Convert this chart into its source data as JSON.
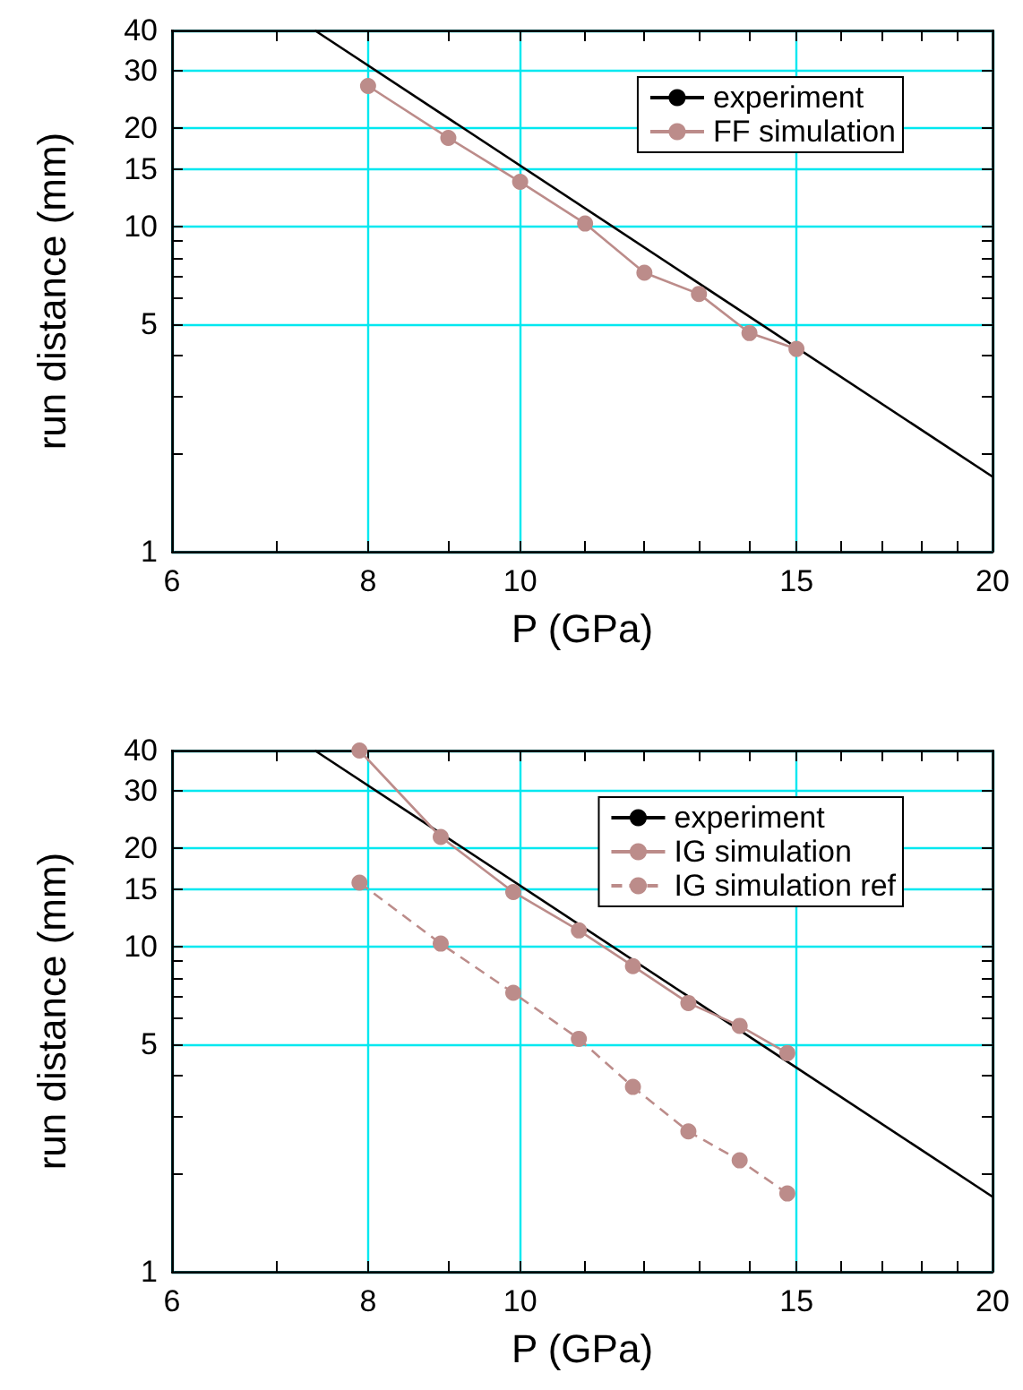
{
  "chart_data": [
    {
      "type": "line",
      "xlabel": "P (GPa)",
      "ylabel": "run distance (mm)",
      "log": "xy",
      "xlim": [
        6,
        20
      ],
      "ylim": [
        1,
        40
      ],
      "xticks": [
        6,
        {
          "value": 7,
          "label": null
        },
        8,
        {
          "value": 9,
          "label": null
        },
        10,
        {
          "value": 11,
          "label": null
        },
        {
          "value": 12,
          "label": null
        },
        {
          "value": 13,
          "label": null
        },
        {
          "value": 14,
          "label": null
        },
        15,
        {
          "value": 16,
          "label": null
        },
        {
          "value": 17,
          "label": null
        },
        {
          "value": 18,
          "label": null
        },
        {
          "value": 19,
          "label": null
        },
        20
      ],
      "yticks": [
        1,
        {
          "value": 2,
          "label": null
        },
        {
          "value": 3,
          "label": null
        },
        {
          "value": 4,
          "label": null
        },
        5,
        {
          "value": 6,
          "label": null
        },
        {
          "value": 7,
          "label": null
        },
        {
          "value": 8,
          "label": null
        },
        {
          "value": 9,
          "label": null
        },
        10,
        15,
        20,
        30,
        40
      ],
      "grid": true,
      "legend": "top right",
      "marker": "circle",
      "series": [
        {
          "name": "experiment",
          "color": "#000000",
          "marker": "none",
          "x": [
            7.4,
            20
          ],
          "values": [
            40,
            1.7
          ]
        },
        {
          "name": "FF simulation",
          "color": "#bc8c8a",
          "x": [
            8,
            9,
            10,
            11,
            12,
            13,
            14,
            15
          ],
          "values": [
            27,
            18.7,
            13.7,
            10.2,
            7.2,
            6.2,
            4.7,
            4.2
          ]
        }
      ]
    },
    {
      "type": "line",
      "xlabel": "P (GPa)",
      "ylabel": "run distance (mm)",
      "log": "xy",
      "xlim": [
        6,
        20
      ],
      "ylim": [
        1,
        40
      ],
      "xticks": [
        6,
        {
          "value": 7,
          "label": null
        },
        8,
        {
          "value": 9,
          "label": null
        },
        10,
        {
          "value": 11,
          "label": null
        },
        {
          "value": 12,
          "label": null
        },
        {
          "value": 13,
          "label": null
        },
        {
          "value": 14,
          "label": null
        },
        15,
        {
          "value": 16,
          "label": null
        },
        {
          "value": 17,
          "label": null
        },
        {
          "value": 18,
          "label": null
        },
        {
          "value": 19,
          "label": null
        },
        20
      ],
      "yticks": [
        1,
        {
          "value": 2,
          "label": null
        },
        {
          "value": 3,
          "label": null
        },
        {
          "value": 4,
          "label": null
        },
        5,
        {
          "value": 6,
          "label": null
        },
        {
          "value": 7,
          "label": null
        },
        {
          "value": 8,
          "label": null
        },
        {
          "value": 9,
          "label": null
        },
        10,
        15,
        20,
        30,
        40
      ],
      "grid": true,
      "legend": "top right",
      "marker": "circle",
      "series": [
        {
          "name": "experiment",
          "color": "#000000",
          "marker": "none",
          "x": [
            7.4,
            20
          ],
          "values": [
            40,
            1.7
          ]
        },
        {
          "name": "IG simulation",
          "color": "#bc8c8a",
          "x": [
            7.9,
            8.9,
            9.9,
            10.9,
            11.8,
            12.8,
            13.8,
            14.8
          ],
          "values": [
            40,
            21.7,
            14.7,
            11.2,
            8.7,
            6.7,
            5.7,
            4.7
          ]
        },
        {
          "name": "IG simulation ref",
          "color": "#bc8c8a",
          "line_style": "dashed",
          "x": [
            7.9,
            8.9,
            9.9,
            10.9,
            11.8,
            12.8,
            13.8,
            14.8
          ],
          "values": [
            15.7,
            10.2,
            7.2,
            5.2,
            3.7,
            2.7,
            2.2,
            1.74
          ]
        }
      ]
    }
  ]
}
